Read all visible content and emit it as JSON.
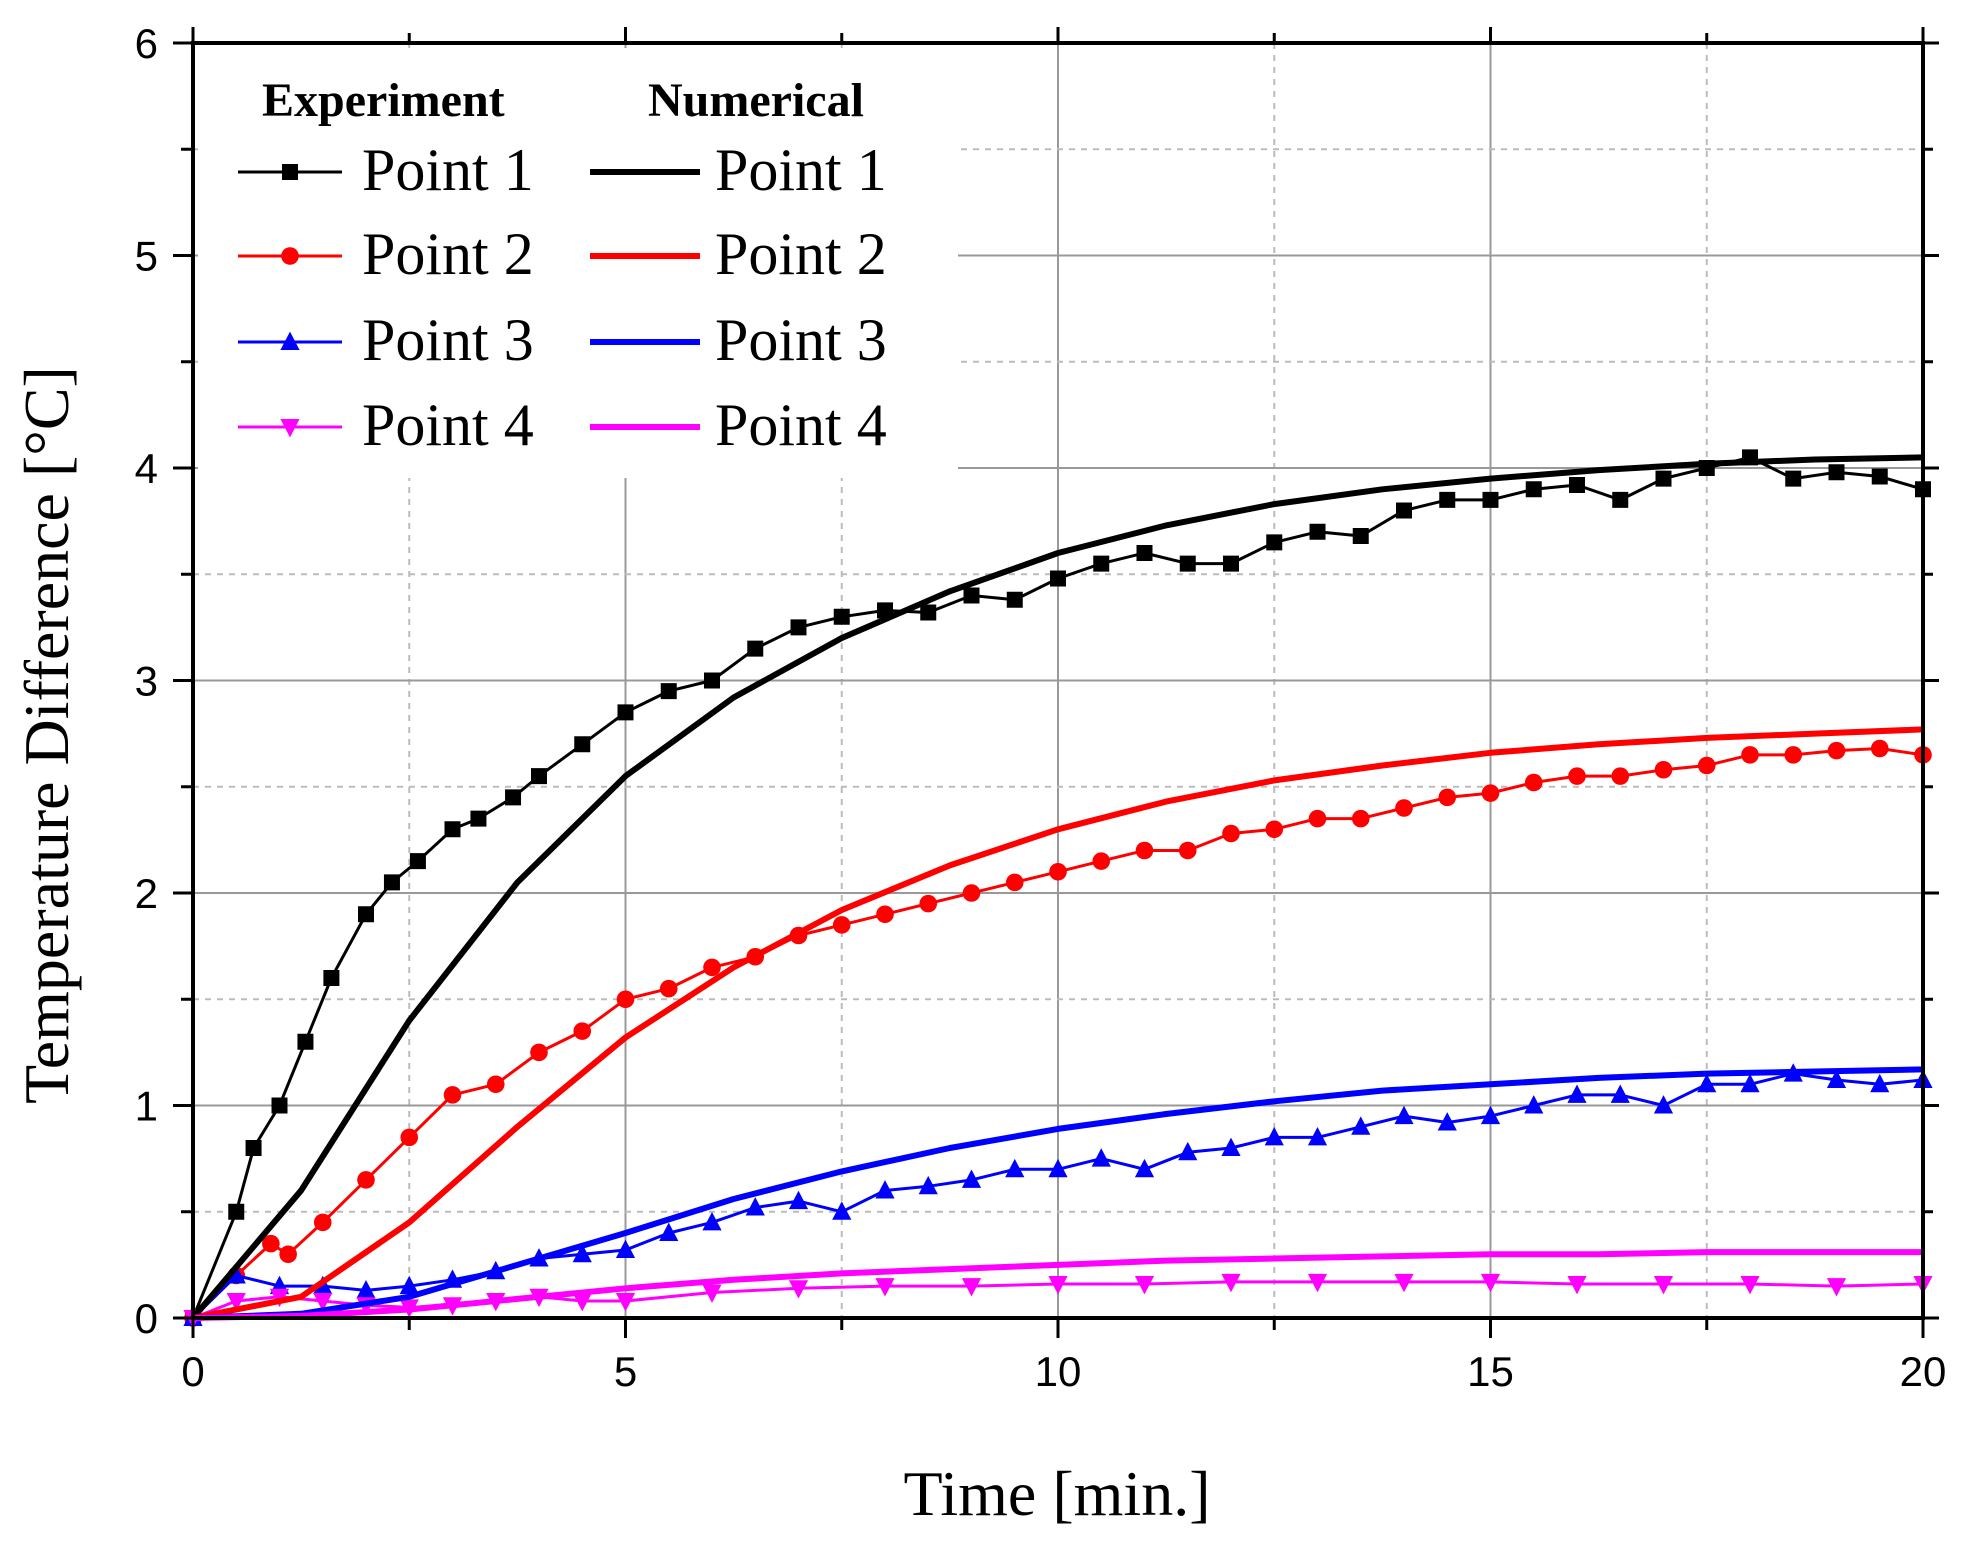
{
  "chart_data": {
    "type": "line",
    "title": "",
    "xlabel": "Time [min.]",
    "ylabel": "Temperature Difference [°C]",
    "xlim": [
      0,
      20
    ],
    "ylim": [
      0,
      6
    ],
    "x_ticks": [
      0,
      5,
      10,
      15,
      20
    ],
    "y_ticks": [
      0,
      1,
      2,
      3,
      4,
      5,
      6
    ],
    "grid": true,
    "legend": {
      "placement": "top-left",
      "headers": [
        "Experiment",
        "Numerical"
      ]
    },
    "series": [
      {
        "name": "Point 1",
        "group": "Experiment",
        "color": "#000000",
        "marker": "square",
        "style": "thin-line-with-markers",
        "x": [
          0,
          0.5,
          0.7,
          1.0,
          1.3,
          1.6,
          2.0,
          2.3,
          2.6,
          3.0,
          3.3,
          3.7,
          4.0,
          4.5,
          5.0,
          5.5,
          6.0,
          6.5,
          7.0,
          7.5,
          8.0,
          8.5,
          9.0,
          9.5,
          10.0,
          10.5,
          11.0,
          11.5,
          12.0,
          12.5,
          13.0,
          13.5,
          14.0,
          14.5,
          15.0,
          15.5,
          16.0,
          16.5,
          17.0,
          17.5,
          18.0,
          18.5,
          19.0,
          19.5,
          20.0
        ],
        "y": [
          0,
          0.5,
          0.8,
          1.0,
          1.3,
          1.6,
          1.9,
          2.05,
          2.15,
          2.3,
          2.35,
          2.45,
          2.55,
          2.7,
          2.85,
          2.95,
          3.0,
          3.15,
          3.25,
          3.3,
          3.33,
          3.32,
          3.4,
          3.38,
          3.48,
          3.55,
          3.6,
          3.55,
          3.55,
          3.65,
          3.7,
          3.68,
          3.8,
          3.85,
          3.85,
          3.9,
          3.92,
          3.85,
          3.95,
          4.0,
          4.05,
          3.95,
          3.98,
          3.96,
          3.9
        ]
      },
      {
        "name": "Point 2",
        "group": "Experiment",
        "color": "#ff0000",
        "marker": "circle",
        "style": "thin-line-with-markers",
        "x": [
          0,
          0.5,
          0.9,
          1.1,
          1.5,
          2.0,
          2.5,
          3.0,
          3.5,
          4.0,
          4.5,
          5.0,
          5.5,
          6.0,
          6.5,
          7.0,
          7.5,
          8.0,
          8.5,
          9.0,
          9.5,
          10.0,
          10.5,
          11.0,
          11.5,
          12.0,
          12.5,
          13.0,
          13.5,
          14.0,
          14.5,
          15.0,
          15.5,
          16.0,
          16.5,
          17.0,
          17.5,
          18.0,
          18.5,
          19.0,
          19.5,
          20.0
        ],
        "y": [
          0,
          0.2,
          0.35,
          0.3,
          0.45,
          0.65,
          0.85,
          1.05,
          1.1,
          1.25,
          1.35,
          1.5,
          1.55,
          1.65,
          1.7,
          1.8,
          1.85,
          1.9,
          1.95,
          2.0,
          2.05,
          2.1,
          2.15,
          2.2,
          2.2,
          2.28,
          2.3,
          2.35,
          2.35,
          2.4,
          2.45,
          2.47,
          2.52,
          2.55,
          2.55,
          2.58,
          2.6,
          2.65,
          2.65,
          2.67,
          2.68,
          2.65
        ]
      },
      {
        "name": "Point 3",
        "group": "Experiment",
        "color": "#0000ff",
        "marker": "triangle-up",
        "style": "thin-line-with-markers",
        "x": [
          0,
          0.5,
          1.0,
          1.5,
          2.0,
          2.5,
          3.0,
          3.5,
          4.0,
          4.5,
          5.0,
          5.5,
          6.0,
          6.5,
          7.0,
          7.5,
          8.0,
          8.5,
          9.0,
          9.5,
          10.0,
          10.5,
          11.0,
          11.5,
          12.0,
          12.5,
          13.0,
          13.5,
          14.0,
          14.5,
          15.0,
          15.5,
          16.0,
          16.5,
          17.0,
          17.5,
          18.0,
          18.5,
          19.0,
          19.5,
          20.0
        ],
        "y": [
          0,
          0.2,
          0.15,
          0.15,
          0.13,
          0.15,
          0.18,
          0.22,
          0.28,
          0.3,
          0.32,
          0.4,
          0.45,
          0.52,
          0.55,
          0.5,
          0.6,
          0.62,
          0.65,
          0.7,
          0.7,
          0.75,
          0.7,
          0.78,
          0.8,
          0.85,
          0.85,
          0.9,
          0.95,
          0.92,
          0.95,
          1.0,
          1.05,
          1.05,
          1.0,
          1.1,
          1.1,
          1.15,
          1.12,
          1.1,
          1.12
        ]
      },
      {
        "name": "Point 4",
        "group": "Experiment",
        "color": "#ff00ff",
        "marker": "triangle-down",
        "style": "thin-line-with-markers",
        "x": [
          0,
          0.5,
          1.0,
          1.5,
          2.0,
          2.5,
          3.0,
          3.5,
          4.0,
          4.5,
          5.0,
          6.0,
          7.0,
          8.0,
          9.0,
          10.0,
          11.0,
          12.0,
          13.0,
          14.0,
          15.0,
          16.0,
          17.0,
          18.0,
          19.0,
          20.0
        ],
        "y": [
          0,
          0.08,
          0.1,
          0.08,
          0.06,
          0.05,
          0.06,
          0.08,
          0.1,
          0.08,
          0.08,
          0.12,
          0.14,
          0.15,
          0.15,
          0.16,
          0.16,
          0.17,
          0.17,
          0.17,
          0.17,
          0.16,
          0.16,
          0.16,
          0.15,
          0.16
        ]
      },
      {
        "name": "Point 1",
        "group": "Numerical",
        "color": "#000000",
        "marker": "none",
        "style": "thick-line",
        "x": [
          0,
          1.25,
          2.5,
          3.75,
          5.0,
          6.25,
          7.5,
          8.75,
          10.0,
          11.25,
          12.5,
          13.75,
          15.0,
          16.25,
          17.5,
          18.75,
          20.0
        ],
        "y": [
          0,
          0.6,
          1.4,
          2.05,
          2.55,
          2.92,
          3.2,
          3.42,
          3.6,
          3.73,
          3.83,
          3.9,
          3.95,
          3.99,
          4.02,
          4.04,
          4.05
        ]
      },
      {
        "name": "Point 2",
        "group": "Numerical",
        "color": "#ff0000",
        "marker": "none",
        "style": "thick-line",
        "x": [
          0,
          1.25,
          2.5,
          3.75,
          5.0,
          6.25,
          7.5,
          8.75,
          10.0,
          11.25,
          12.5,
          13.75,
          15.0,
          16.25,
          17.5,
          18.75,
          20.0
        ],
        "y": [
          0,
          0.1,
          0.45,
          0.9,
          1.32,
          1.65,
          1.92,
          2.13,
          2.3,
          2.43,
          2.53,
          2.6,
          2.66,
          2.7,
          2.73,
          2.75,
          2.77
        ]
      },
      {
        "name": "Point 3",
        "group": "Numerical",
        "color": "#0000ff",
        "marker": "none",
        "style": "thick-line",
        "x": [
          0,
          1.25,
          2.5,
          3.75,
          5.0,
          6.25,
          7.5,
          8.75,
          10.0,
          11.25,
          12.5,
          13.75,
          15.0,
          16.25,
          17.5,
          18.75,
          20.0
        ],
        "y": [
          0,
          0.02,
          0.1,
          0.25,
          0.4,
          0.56,
          0.69,
          0.8,
          0.89,
          0.96,
          1.02,
          1.07,
          1.1,
          1.13,
          1.15,
          1.16,
          1.17
        ]
      },
      {
        "name": "Point 4",
        "group": "Numerical",
        "color": "#ff00ff",
        "marker": "none",
        "style": "thick-line",
        "x": [
          0,
          1.25,
          2.5,
          3.75,
          5.0,
          6.25,
          7.5,
          8.75,
          10.0,
          11.25,
          12.5,
          13.75,
          15.0,
          16.25,
          17.5,
          18.75,
          20.0
        ],
        "y": [
          0,
          0.01,
          0.04,
          0.09,
          0.14,
          0.18,
          0.21,
          0.23,
          0.25,
          0.27,
          0.28,
          0.29,
          0.3,
          0.3,
          0.31,
          0.31,
          0.31
        ]
      }
    ]
  }
}
